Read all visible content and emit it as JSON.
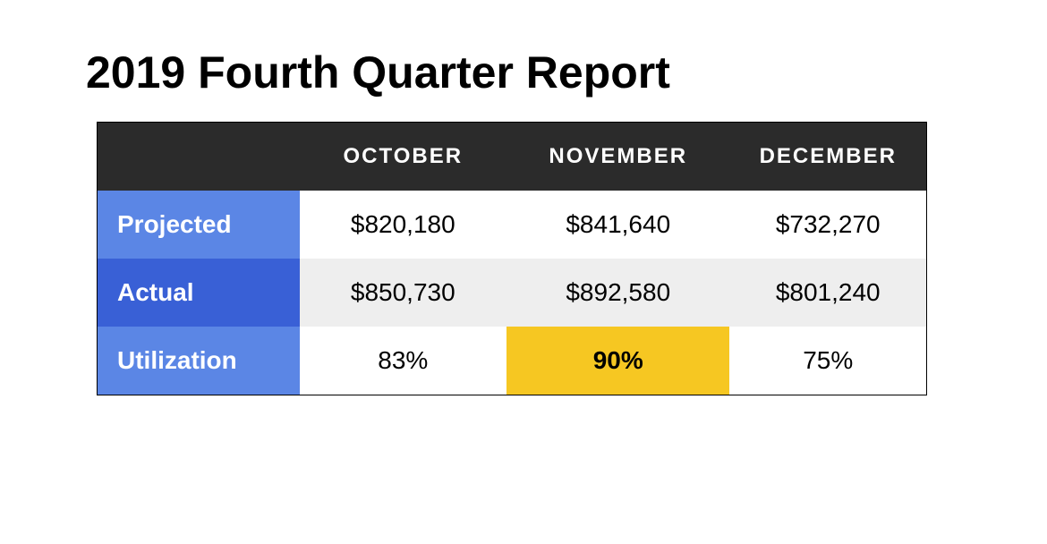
{
  "title": "2019 Fourth Quarter Report",
  "table": {
    "type": "table",
    "header_bg": "#2b2b2b",
    "header_fg": "#ffffff",
    "rowlabel_bg_light": "#5b86e5",
    "rowlabel_bg_dark": "#3960d6",
    "rowlabel_fg": "#ffffff",
    "zebra_bg": "#eeeeee",
    "highlight_bg": "#f6c722",
    "border_color": "#000000",
    "title_fontsize": 50,
    "header_fontsize": 24,
    "header_letterspacing": 2,
    "label_fontsize": 28,
    "cell_fontsize": 28,
    "columns": [
      "",
      "OCTOBER",
      "NOVEMBER",
      "DECEMBER"
    ],
    "rows": [
      {
        "label": "Projected",
        "cells": [
          "$820,180",
          "$841,640",
          "$732,270"
        ],
        "highlight_col": null
      },
      {
        "label": "Actual",
        "cells": [
          "$850,730",
          "$892,580",
          "$801,240"
        ],
        "highlight_col": null
      },
      {
        "label": "Utilization",
        "cells": [
          "83%",
          "90%",
          "75%"
        ],
        "highlight_col": 1
      }
    ]
  }
}
